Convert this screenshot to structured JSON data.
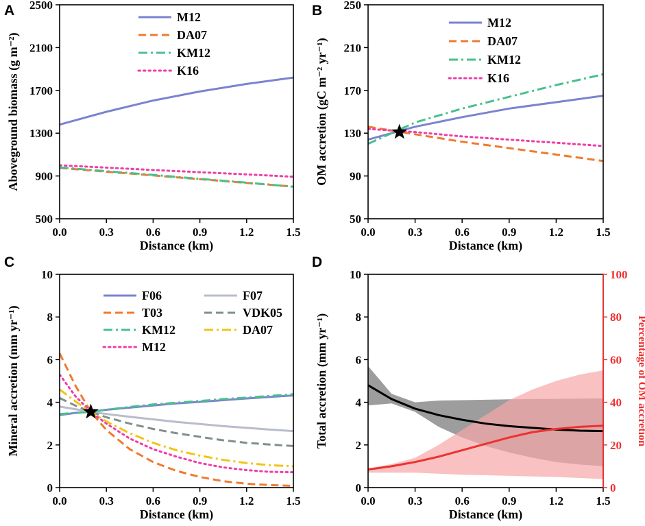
{
  "colors": {
    "blue": "#7B83CF",
    "orange": "#F07A2F",
    "green": "#48C08C",
    "pink": "#F03CA8",
    "lightgray": "#B8BCCB",
    "slate": "#7F8F8C",
    "yellow": "#F2C414",
    "black": "#000000",
    "red": "#EE3030",
    "redband": "#F7A6A6",
    "grayband": "#8C8C8C"
  },
  "chart_data": [
    {
      "panel": "A",
      "type": "line",
      "xlabel": "Distance (km)",
      "ylabel": "Aboveground biomass (g m⁻²)",
      "xlim": [
        0,
        1.5
      ],
      "ylim": [
        500,
        2500
      ],
      "xticks": [
        "0.0",
        "0.3",
        "0.6",
        "0.9",
        "1.2",
        "1.5"
      ],
      "yticks": [
        "500",
        "900",
        "1300",
        "1700",
        "2100",
        "2500"
      ],
      "legend_position": "top-center",
      "x": [
        0.0,
        0.3,
        0.6,
        0.9,
        1.2,
        1.5
      ],
      "series": [
        {
          "name": "M12",
          "values": [
            1380,
            1500,
            1605,
            1690,
            1760,
            1820
          ],
          "color": "blue",
          "dash": "solid"
        },
        {
          "name": "DA07",
          "values": [
            975,
            940,
            905,
            870,
            835,
            800
          ],
          "color": "orange",
          "dash": "dash"
        },
        {
          "name": "KM12",
          "values": [
            980,
            945,
            910,
            873,
            838,
            800
          ],
          "color": "green",
          "dash": "dashdot"
        },
        {
          "name": "K16",
          "values": [
            1000,
            978,
            956,
            935,
            915,
            893
          ],
          "color": "pink",
          "dash": "dot"
        }
      ]
    },
    {
      "panel": "B",
      "type": "line",
      "xlabel": "Distance (km)",
      "ylabel": "OM accretion (gC m⁻² yr⁻¹)",
      "xlim": [
        0,
        1.5
      ],
      "ylim": [
        50,
        250
      ],
      "xticks": [
        "0.0",
        "0.3",
        "0.6",
        "0.9",
        "1.2",
        "1.5"
      ],
      "yticks": [
        "50",
        "90",
        "130",
        "170",
        "210",
        "250"
      ],
      "legend_position": "top-center",
      "marker": {
        "x": 0.2,
        "y": 131
      },
      "x": [
        0.0,
        0.3,
        0.6,
        0.9,
        1.2,
        1.5
      ],
      "series": [
        {
          "name": "M12",
          "values": [
            124,
            136,
            145,
            153,
            159,
            165
          ],
          "color": "blue",
          "dash": "solid"
        },
        {
          "name": "DA07",
          "values": [
            136,
            129,
            122,
            116,
            110,
            104
          ],
          "color": "orange",
          "dash": "dash"
        },
        {
          "name": "KM12",
          "values": [
            120,
            140,
            153,
            164,
            175,
            185
          ],
          "color": "green",
          "dash": "dashdot"
        },
        {
          "name": "K16",
          "values": [
            134,
            131,
            127,
            124,
            121,
            118
          ],
          "color": "pink",
          "dash": "dot"
        }
      ]
    },
    {
      "panel": "C",
      "type": "line",
      "xlabel": "Distance (km)",
      "ylabel": "Mineral accretion (mm yr⁻¹)",
      "xlim": [
        0,
        1.5
      ],
      "ylim": [
        0,
        10
      ],
      "xticks": [
        "0.0",
        "0.3",
        "0.6",
        "0.9",
        "1.2",
        "1.5"
      ],
      "yticks": [
        "0",
        "2",
        "4",
        "6",
        "8",
        "10"
      ],
      "legend_position": "top-right",
      "marker": {
        "x": 0.2,
        "y": 3.55
      },
      "x": [
        0.0,
        0.1,
        0.2,
        0.3,
        0.45,
        0.6,
        0.75,
        0.9,
        1.05,
        1.2,
        1.35,
        1.5
      ],
      "series": [
        {
          "name": "F06",
          "values": [
            3.4,
            3.5,
            3.55,
            3.65,
            3.75,
            3.85,
            3.95,
            4.02,
            4.1,
            4.18,
            4.25,
            4.32
          ],
          "color": "blue",
          "dash": "solid"
        },
        {
          "name": "T03",
          "values": [
            6.3,
            4.8,
            3.55,
            2.7,
            1.8,
            1.2,
            0.78,
            0.5,
            0.3,
            0.18,
            0.12,
            0.08
          ],
          "color": "orange",
          "dash": "dash"
        },
        {
          "name": "KM12",
          "values": [
            3.45,
            3.5,
            3.55,
            3.65,
            3.78,
            3.9,
            3.98,
            4.06,
            4.15,
            4.22,
            4.3,
            4.38
          ],
          "color": "green",
          "dash": "dashdot"
        },
        {
          "name": "M12",
          "values": [
            5.3,
            4.3,
            3.55,
            3.0,
            2.3,
            1.8,
            1.45,
            1.15,
            0.95,
            0.82,
            0.74,
            0.72
          ],
          "color": "pink",
          "dash": "dot"
        },
        {
          "name": "F07",
          "values": [
            3.8,
            3.68,
            3.55,
            3.45,
            3.32,
            3.2,
            3.08,
            2.98,
            2.88,
            2.8,
            2.72,
            2.65
          ],
          "color": "lightgray",
          "dash": "solid"
        },
        {
          "name": "VDK05",
          "values": [
            4.2,
            3.85,
            3.55,
            3.3,
            3.0,
            2.75,
            2.55,
            2.38,
            2.22,
            2.1,
            2.02,
            1.95
          ],
          "color": "slate",
          "dash": "dash"
        },
        {
          "name": "DA07",
          "values": [
            4.6,
            4.05,
            3.55,
            3.1,
            2.55,
            2.1,
            1.75,
            1.5,
            1.3,
            1.15,
            1.05,
            1.0
          ],
          "color": "yellow",
          "dash": "dashdot"
        }
      ],
      "legend_columns": [
        [
          "F06",
          "T03",
          "KM12",
          "M12"
        ],
        [
          "F07",
          "VDK05",
          "DA07"
        ]
      ]
    },
    {
      "panel": "D",
      "type": "line",
      "xlabel": "Distance (km)",
      "ylabel": "Total accretion (mm yr⁻¹)",
      "ylabel_right": "Percentage of OM accretion",
      "xlim": [
        0,
        1.5
      ],
      "ylim": [
        0,
        10
      ],
      "ylim_right": [
        0,
        100
      ],
      "xticks": [
        "0.0",
        "0.3",
        "0.6",
        "0.9",
        "1.2",
        "1.5"
      ],
      "yticks": [
        "0",
        "2",
        "4",
        "6",
        "8",
        "10"
      ],
      "yticks_right": [
        "0",
        "20",
        "40",
        "60",
        "80",
        "100"
      ],
      "x": [
        0.0,
        0.15,
        0.3,
        0.45,
        0.6,
        0.75,
        0.9,
        1.05,
        1.2,
        1.35,
        1.5
      ],
      "series": [
        {
          "name": "Total accretion",
          "axis": "left",
          "values": [
            4.8,
            4.15,
            3.7,
            3.4,
            3.18,
            3.0,
            2.88,
            2.8,
            2.72,
            2.67,
            2.65
          ],
          "lower": [
            3.85,
            3.95,
            3.55,
            2.85,
            2.35,
            1.95,
            1.65,
            1.4,
            1.2,
            1.08,
            1.0
          ],
          "upper": [
            5.7,
            4.4,
            4.0,
            4.08,
            4.1,
            4.12,
            4.14,
            4.15,
            4.16,
            4.17,
            4.18
          ],
          "color": "black",
          "band_color": "grayband"
        },
        {
          "name": "Percentage of OM accretion",
          "axis": "right",
          "values": [
            8.5,
            10,
            12,
            14.5,
            17.5,
            20.5,
            23.5,
            26,
            27.5,
            28.5,
            29
          ],
          "lower": [
            7,
            7,
            7,
            6.5,
            6,
            5.8,
            5.5,
            5.2,
            5,
            4.5,
            4
          ],
          "upper": [
            9,
            11,
            14,
            20,
            27,
            34,
            41,
            46,
            50,
            53,
            55
          ],
          "color": "red",
          "band_color": "redband"
        }
      ]
    }
  ]
}
